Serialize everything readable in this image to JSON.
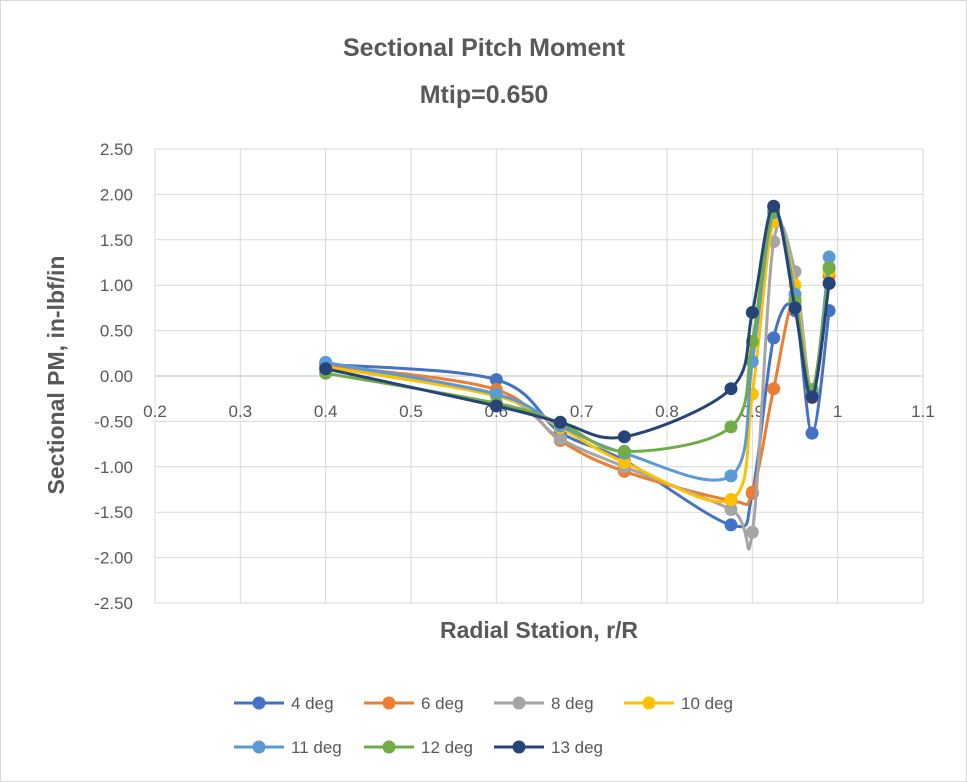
{
  "chart_data": {
    "type": "scatter",
    "title": "Sectional Pitch Moment",
    "subtitle": "Mtip=0.650",
    "xlabel": "Radial Station, r/R",
    "ylabel": "Sectional PM, in-lbf/in",
    "xlim": [
      0.2,
      1.1
    ],
    "ylim": [
      -2.5,
      2.5
    ],
    "x_ticks": [
      "0.2",
      "0.3",
      "0.4",
      "0.5",
      "0.6",
      "0.7",
      "0.8",
      "0.9",
      "1",
      "1.1"
    ],
    "y_ticks": [
      "2.50",
      "2.00",
      "1.50",
      "1.00",
      "0.50",
      "0.00",
      "-0.50",
      "-1.00",
      "-1.50",
      "-2.00",
      "-2.50"
    ],
    "grid": true,
    "legend_position": "bottom",
    "x": [
      0.4,
      0.6,
      0.675,
      0.75,
      0.875,
      0.9,
      0.925,
      0.95,
      0.97,
      0.99
    ],
    "series": [
      {
        "name": "4 deg",
        "color": "#4472C4",
        "values": [
          0.13,
          -0.04,
          -0.62,
          -0.93,
          -1.64,
          -1.29,
          0.42,
          0.72,
          -0.63,
          0.72
        ]
      },
      {
        "name": "6 deg",
        "color": "#ED7D31",
        "values": [
          0.12,
          -0.15,
          -0.71,
          -1.05,
          -1.37,
          -1.28,
          -0.14,
          0.84,
          -0.24,
          1.1
        ]
      },
      {
        "name": "8 deg",
        "color": "#A5A5A5",
        "values": [
          0.1,
          -0.2,
          -0.69,
          -1.0,
          -1.47,
          -1.72,
          1.48,
          1.15,
          -0.16,
          1.2
        ]
      },
      {
        "name": "10 deg",
        "color": "#FFC000",
        "values": [
          0.1,
          -0.22,
          -0.57,
          -0.95,
          -1.36,
          -0.2,
          1.7,
          1.0,
          -0.2,
          1.15
        ]
      },
      {
        "name": "11 deg",
        "color": "#5B9BD5",
        "values": [
          0.15,
          -0.2,
          -0.55,
          -0.85,
          -1.1,
          0.16,
          1.8,
          0.9,
          -0.18,
          1.31
        ]
      },
      {
        "name": "12 deg",
        "color": "#70AD47",
        "values": [
          0.03,
          -0.3,
          -0.52,
          -0.83,
          -0.56,
          0.38,
          1.82,
          0.82,
          -0.15,
          1.19
        ]
      },
      {
        "name": "13 deg",
        "color": "#264478",
        "values": [
          0.08,
          -0.33,
          -0.51,
          -0.67,
          -0.14,
          0.7,
          1.87,
          0.75,
          -0.23,
          1.02
        ]
      }
    ]
  }
}
